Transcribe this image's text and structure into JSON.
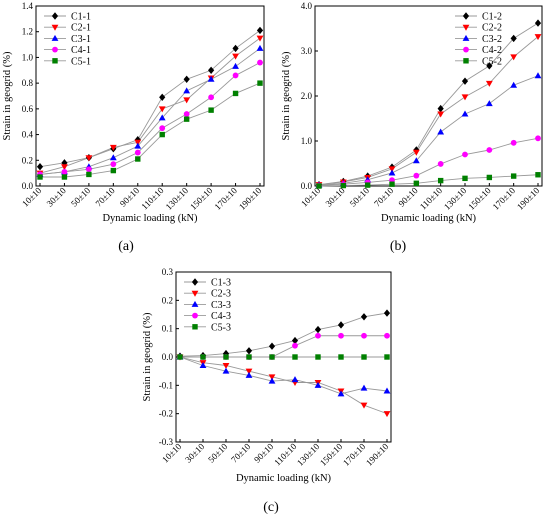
{
  "colors": {
    "C1": "#000000",
    "C2": "#ff0000",
    "C3": "#0000ff",
    "C4": "#ff00ff",
    "C5": "#008000",
    "connector": "#999999"
  },
  "chart_data": [
    {
      "type": "line",
      "panel_label": "(a)",
      "xlabel": "Dynamic loading (kN)",
      "ylabel": "Strain in geogrid (%)",
      "categories": [
        "10±10",
        "30±10",
        "50±10",
        "70±10",
        "90±10",
        "110±10",
        "130±10",
        "150±10",
        "170±10",
        "190±10"
      ],
      "ylim": [
        0,
        1.4
      ],
      "yticks": [
        "0.0",
        "0.2",
        "0.4",
        "0.6",
        "0.8",
        "1.0",
        "1.2",
        "1.4"
      ],
      "legend_position": "top-left",
      "grid": false,
      "series": [
        {
          "name": "C1-1",
          "marker": "diamond",
          "color": "#000000",
          "values": [
            0.15,
            0.18,
            0.22,
            0.29,
            0.36,
            0.69,
            0.83,
            0.9,
            1.07,
            1.21
          ]
        },
        {
          "name": "C2-1",
          "marker": "triangle-down",
          "color": "#ff0000",
          "values": [
            0.1,
            0.15,
            0.22,
            0.3,
            0.34,
            0.6,
            0.67,
            0.84,
            1.01,
            1.15
          ]
        },
        {
          "name": "C3-1",
          "marker": "triangle-up",
          "color": "#0000ff",
          "values": [
            0.09,
            0.11,
            0.15,
            0.22,
            0.31,
            0.53,
            0.74,
            0.83,
            0.93,
            1.07
          ]
        },
        {
          "name": "C4-1",
          "marker": "circle",
          "color": "#ff00ff",
          "values": [
            0.09,
            0.11,
            0.13,
            0.17,
            0.26,
            0.45,
            0.56,
            0.69,
            0.86,
            0.96
          ]
        },
        {
          "name": "C5-1",
          "marker": "square",
          "color": "#008000",
          "values": [
            0.07,
            0.07,
            0.09,
            0.12,
            0.21,
            0.4,
            0.52,
            0.59,
            0.72,
            0.8
          ]
        }
      ]
    },
    {
      "type": "line",
      "panel_label": "(b)",
      "xlabel": "Dynamic loading (kN)",
      "ylabel": "Strain in geogrid (%)",
      "categories": [
        "10±10",
        "30±10",
        "50±10",
        "70±10",
        "90±10",
        "110±10",
        "130±10",
        "150±10",
        "170±10",
        "190±10"
      ],
      "ylim": [
        0,
        4.0
      ],
      "yticks": [
        "0.0",
        "1.0",
        "2.0",
        "3.0",
        "4.0"
      ],
      "legend_position": "top-right",
      "grid": false,
      "series": [
        {
          "name": "C1-2",
          "marker": "diamond",
          "color": "#000000",
          "values": [
            0.03,
            0.1,
            0.22,
            0.42,
            0.8,
            1.72,
            2.33,
            2.67,
            3.28,
            3.62
          ]
        },
        {
          "name": "C2-2",
          "marker": "triangle-down",
          "color": "#ff0000",
          "values": [
            0.03,
            0.09,
            0.19,
            0.38,
            0.75,
            1.6,
            1.98,
            2.28,
            2.87,
            3.32
          ]
        },
        {
          "name": "C3-2",
          "marker": "triangle-up",
          "color": "#0000ff",
          "values": [
            0.02,
            0.06,
            0.14,
            0.29,
            0.56,
            1.2,
            1.6,
            1.83,
            2.24,
            2.45
          ]
        },
        {
          "name": "C4-2",
          "marker": "circle",
          "color": "#ff00ff",
          "values": [
            0.01,
            0.04,
            0.08,
            0.13,
            0.23,
            0.49,
            0.7,
            0.8,
            0.96,
            1.06
          ]
        },
        {
          "name": "C5-2",
          "marker": "square",
          "color": "#008000",
          "values": [
            0.0,
            0.01,
            0.02,
            0.04,
            0.06,
            0.12,
            0.17,
            0.19,
            0.22,
            0.25
          ]
        }
      ]
    },
    {
      "type": "line",
      "panel_label": "(c)",
      "xlabel": "Dynamic loading (kN)",
      "ylabel": "Strain in geogrid (%)",
      "categories": [
        "10±10",
        "30±10",
        "50±10",
        "70±10",
        "90±10",
        "110±10",
        "130±10",
        "150±10",
        "170±10",
        "190±10"
      ],
      "ylim": [
        -0.3,
        0.3
      ],
      "yticks": [
        "-0.3",
        "-0.2",
        "-0.1",
        "0.0",
        "0.1",
        "0.2",
        "0.3"
      ],
      "legend_position": "top-left",
      "grid": false,
      "series": [
        {
          "name": "C1-3",
          "marker": "diamond",
          "color": "#000000",
          "values": [
            0.003,
            0.005,
            0.012,
            0.022,
            0.038,
            0.058,
            0.097,
            0.113,
            0.142,
            0.155
          ]
        },
        {
          "name": "C2-3",
          "marker": "triangle-down",
          "color": "#ff0000",
          "values": [
            0.0,
            -0.02,
            -0.03,
            -0.05,
            -0.07,
            -0.09,
            -0.09,
            -0.12,
            -0.17,
            -0.2
          ]
        },
        {
          "name": "C3-3",
          "marker": "triangle-up",
          "color": "#0000ff",
          "values": [
            0.0,
            -0.03,
            -0.05,
            -0.065,
            -0.085,
            -0.08,
            -0.1,
            -0.13,
            -0.11,
            -0.12
          ]
        },
        {
          "name": "C4-3",
          "marker": "circle",
          "color": "#ff00ff",
          "values": [
            0.0,
            0.0,
            0.0,
            0.0,
            0.0,
            0.04,
            0.075,
            0.075,
            0.075,
            0.075
          ]
        },
        {
          "name": "C5-3",
          "marker": "square",
          "color": "#008000",
          "values": [
            0.0,
            0.0,
            0.0,
            0.0,
            0.0,
            0.0,
            0.0,
            0.0,
            0.0,
            0.0
          ]
        }
      ]
    }
  ]
}
